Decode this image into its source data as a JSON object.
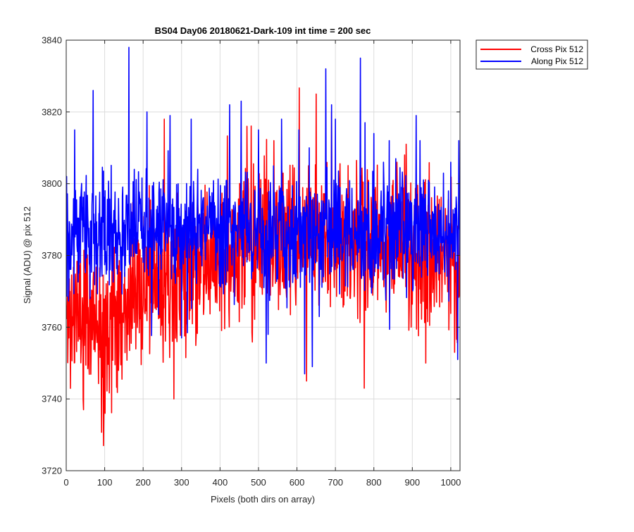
{
  "chart_data": {
    "type": "line",
    "title": "BS04 Day06 20180621-Dark-109 int time = 200 sec",
    "xlabel": "Pixels (both dirs on array)",
    "ylabel": "Signal (ADU) @ pix 512",
    "xlim": [
      0,
      1024
    ],
    "ylim": [
      3720,
      3840
    ],
    "xticks": [
      0,
      100,
      200,
      300,
      400,
      500,
      600,
      700,
      800,
      900,
      1000
    ],
    "yticks": [
      3720,
      3740,
      3760,
      3780,
      3800,
      3820,
      3840
    ],
    "xtick_labels": [
      "0",
      "100",
      "200",
      "300",
      "400",
      "500",
      "600",
      "700",
      "800",
      "900",
      "1000"
    ],
    "ytick_labels": [
      "3720",
      "3740",
      "3760",
      "3780",
      "3800",
      "3820",
      "3840"
    ],
    "grid": true,
    "legend_position": "outside-top-right",
    "n_points": 1024,
    "series": [
      {
        "name": "Cross Pix 512",
        "color": "#ff0000",
        "noise_seed": 11,
        "anchors_x": [
          0,
          50,
          100,
          150,
          200,
          250,
          300,
          350,
          400,
          450,
          500,
          550,
          600,
          650,
          700,
          750,
          800,
          850,
          900,
          950,
          1000,
          1023
        ],
        "anchors_y": [
          3763,
          3764,
          3764,
          3768,
          3770,
          3771,
          3773,
          3777,
          3780,
          3782,
          3784,
          3785,
          3784,
          3785,
          3786,
          3783,
          3783,
          3783,
          3782,
          3779,
          3779,
          3779
        ],
        "noise_amplitude": 10,
        "peaks": [
          [
            97,
            3727
          ],
          [
            98,
            3736
          ],
          [
            101,
            3736
          ],
          [
            255,
            3818
          ],
          [
            280,
            3740
          ],
          [
            470,
            3816
          ],
          [
            540,
            3812
          ],
          [
            625,
            3745
          ],
          [
            630,
            3805
          ],
          [
            650,
            3825
          ],
          [
            690,
            3820
          ],
          [
            775,
            3743
          ],
          [
            860,
            3806
          ],
          [
            880,
            3808
          ],
          [
            884,
            3811
          ],
          [
            935,
            3750
          ],
          [
            1010,
            3753
          ],
          [
            45,
            3737
          ]
        ]
      },
      {
        "name": "Along Pix 512",
        "color": "#0000ff",
        "noise_seed": 29,
        "anchors_x": [
          0,
          50,
          100,
          150,
          200,
          250,
          300,
          350,
          400,
          450,
          500,
          550,
          600,
          650,
          700,
          750,
          800,
          850,
          900,
          950,
          1000,
          1023
        ],
        "anchors_y": [
          3784,
          3786,
          3787,
          3787,
          3787,
          3787,
          3787,
          3787,
          3787,
          3787,
          3786,
          3786,
          3785,
          3786,
          3786,
          3785,
          3785,
          3786,
          3786,
          3785,
          3785,
          3786
        ],
        "noise_amplitude": 8,
        "peaks": [
          [
            1,
            3802
          ],
          [
            22,
            3815
          ],
          [
            70,
            3826
          ],
          [
            163,
            3838
          ],
          [
            210,
            3820
          ],
          [
            270,
            3819
          ],
          [
            325,
            3818
          ],
          [
            425,
            3822
          ],
          [
            455,
            3823
          ],
          [
            500,
            3815
          ],
          [
            560,
            3818
          ],
          [
            605,
            3815
          ],
          [
            620,
            3747
          ],
          [
            632,
            3810
          ],
          [
            675,
            3832
          ],
          [
            690,
            3822
          ],
          [
            700,
            3818
          ],
          [
            765,
            3835
          ],
          [
            777,
            3817
          ],
          [
            800,
            3814
          ],
          [
            825,
            3806
          ],
          [
            840,
            3812
          ],
          [
            910,
            3819
          ],
          [
            920,
            3812
          ],
          [
            1000,
            3806
          ],
          [
            1018,
            3751
          ],
          [
            1021,
            3812
          ],
          [
            300,
            3757
          ],
          [
            520,
            3750
          ],
          [
            640,
            3749
          ],
          [
            525,
            3758
          ]
        ]
      }
    ]
  }
}
